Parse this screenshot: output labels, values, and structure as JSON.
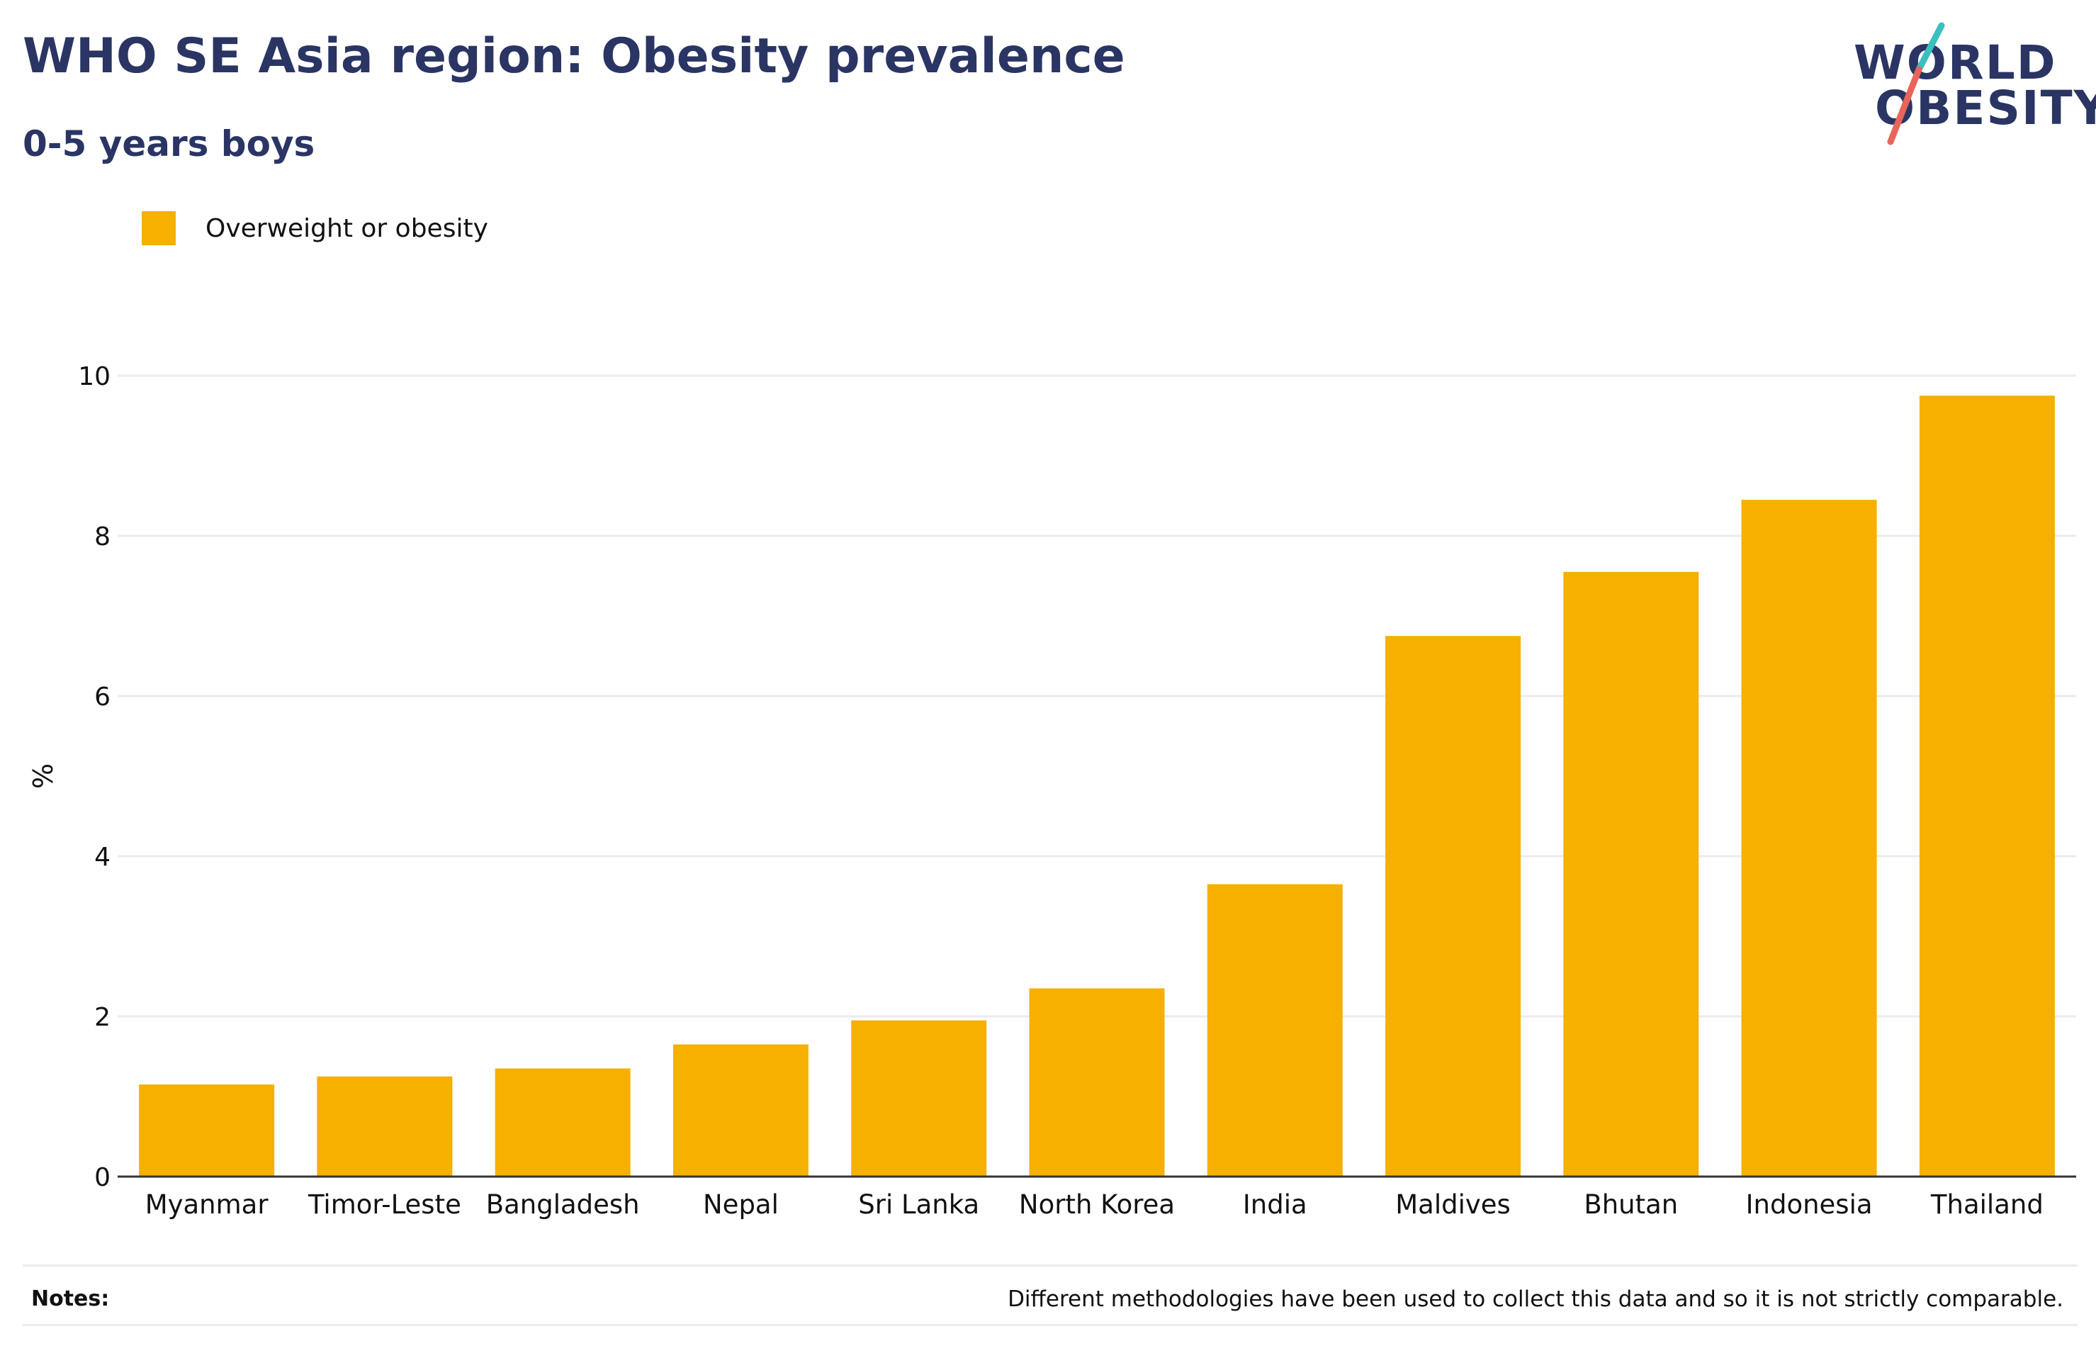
{
  "header": {
    "title": "WHO SE Asia region: Obesity prevalence",
    "subtitle": "0-5 years boys"
  },
  "logo": {
    "line1": "WORLD",
    "line2": "OBESITY",
    "colors": {
      "text": "#2a3564",
      "slash_top": "#3bbfbf",
      "slash_bottom": "#e8655a"
    }
  },
  "legend": {
    "items": [
      {
        "label": "Overweight or obesity",
        "color": "#f5b000"
      }
    ],
    "placement": "top-left"
  },
  "notes": {
    "label": "Notes:",
    "text": "Different methodologies have been used to collect this data and so it is not strictly comparable."
  },
  "chart_data": {
    "type": "bar",
    "categories": [
      "Myanmar",
      "Timor-Leste",
      "Bangladesh",
      "Nepal",
      "Sri Lanka",
      "North Korea",
      "India",
      "Maldives",
      "Bhutan",
      "Indonesia",
      "Thailand"
    ],
    "series": [
      {
        "name": "Overweight or obesity",
        "values": [
          1.15,
          1.25,
          1.35,
          1.65,
          1.95,
          2.35,
          3.65,
          6.75,
          7.55,
          8.45,
          9.75
        ],
        "color": "#f5b000"
      }
    ],
    "ylabel": "%",
    "ylim": [
      0,
      10
    ],
    "yticks": [
      0,
      2,
      4,
      6,
      8,
      10
    ],
    "grid": true
  }
}
